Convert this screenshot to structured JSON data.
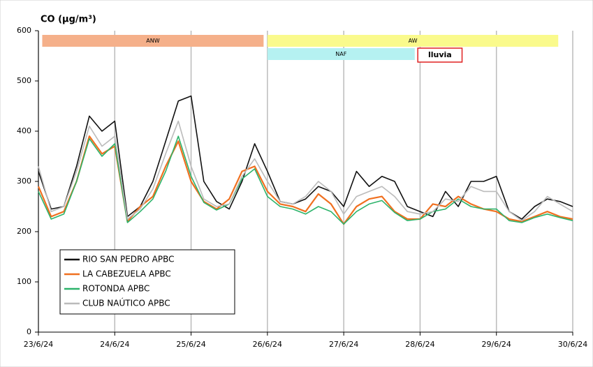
{
  "chart_data": {
    "type": "line",
    "title": "CO (µg/m³)",
    "xlim": [
      0,
      7
    ],
    "xticks": [
      {
        "value": 0,
        "label": "23/6/24"
      },
      {
        "value": 1,
        "label": "24/6/24"
      },
      {
        "value": 2,
        "label": "25/6/24"
      },
      {
        "value": 3,
        "label": "26/6/24"
      },
      {
        "value": 4,
        "label": "27/6/24"
      },
      {
        "value": 5,
        "label": "28/6/24"
      },
      {
        "value": 6,
        "label": "29/6/24"
      },
      {
        "value": 7,
        "label": "30/6/24"
      }
    ],
    "ylim": [
      0,
      600
    ],
    "yticks": [
      0,
      100,
      200,
      300,
      400,
      500,
      600
    ],
    "grid": true,
    "legend": "lower-left",
    "x": [
      0,
      0.167,
      0.333,
      0.5,
      0.667,
      0.833,
      1,
      1.167,
      1.333,
      1.5,
      1.667,
      1.833,
      2,
      2.167,
      2.333,
      2.5,
      2.667,
      2.833,
      3,
      3.167,
      3.333,
      3.5,
      3.667,
      3.833,
      4,
      4.167,
      4.333,
      4.5,
      4.667,
      4.833,
      5,
      5.167,
      5.333,
      5.5,
      5.667,
      5.833,
      6,
      6.167,
      6.333,
      6.5,
      6.667,
      6.833,
      7
    ],
    "series": [
      {
        "name": "RIO SAN PEDRO APBC",
        "color": "#111111",
        "values": [
          320,
          245,
          250,
          330,
          430,
          400,
          420,
          230,
          250,
          300,
          380,
          460,
          470,
          300,
          260,
          245,
          300,
          375,
          320,
          260,
          255,
          265,
          290,
          280,
          250,
          320,
          290,
          310,
          300,
          250,
          240,
          230,
          280,
          250,
          300,
          300,
          310,
          240,
          225,
          250,
          265,
          260,
          250
        ]
      },
      {
        "name": "LA CABEZUELA  APBC",
        "color": "#f07020",
        "values": [
          290,
          230,
          240,
          300,
          390,
          355,
          370,
          220,
          250,
          270,
          330,
          380,
          300,
          260,
          245,
          265,
          320,
          330,
          280,
          255,
          250,
          240,
          275,
          255,
          215,
          250,
          265,
          270,
          240,
          225,
          225,
          255,
          250,
          270,
          255,
          245,
          240,
          225,
          220,
          230,
          240,
          230,
          225
        ]
      },
      {
        "name": "ROTONDA  APBC",
        "color": "#2db36b",
        "values": [
          280,
          225,
          235,
          300,
          385,
          350,
          375,
          218,
          240,
          265,
          320,
          390,
          310,
          258,
          243,
          255,
          305,
          325,
          270,
          250,
          245,
          235,
          250,
          240,
          215,
          240,
          255,
          262,
          238,
          222,
          225,
          240,
          245,
          265,
          250,
          245,
          245,
          222,
          218,
          228,
          235,
          228,
          222
        ]
      },
      {
        "name": "CLUB NAÚTICO  APBC",
        "color": "#bbbbbb",
        "values": [
          330,
          240,
          250,
          320,
          410,
          370,
          390,
          225,
          245,
          285,
          355,
          420,
          330,
          265,
          250,
          255,
          310,
          345,
          300,
          260,
          255,
          270,
          300,
          280,
          235,
          270,
          280,
          290,
          270,
          240,
          235,
          240,
          265,
          260,
          290,
          280,
          280,
          240,
          222,
          240,
          270,
          255,
          240
        ]
      }
    ],
    "annotations": [
      {
        "label": "ANW",
        "start": 0.05,
        "end": 2.95,
        "color": "#f5b08a",
        "text_color": "#555555"
      },
      {
        "label": "AW",
        "start": 3.0,
        "end": 6.81,
        "color": "#fafa8c",
        "text_color": "#555555"
      },
      {
        "label": "NAF",
        "start": 3.0,
        "end": 4.93,
        "color": "#b5f1f1",
        "text_color": "#555555"
      },
      {
        "label": "lluvia",
        "start": 4.97,
        "end": 5.55,
        "color": "#ffffff",
        "border": "#e02020",
        "text_color": "#e02020"
      }
    ]
  }
}
